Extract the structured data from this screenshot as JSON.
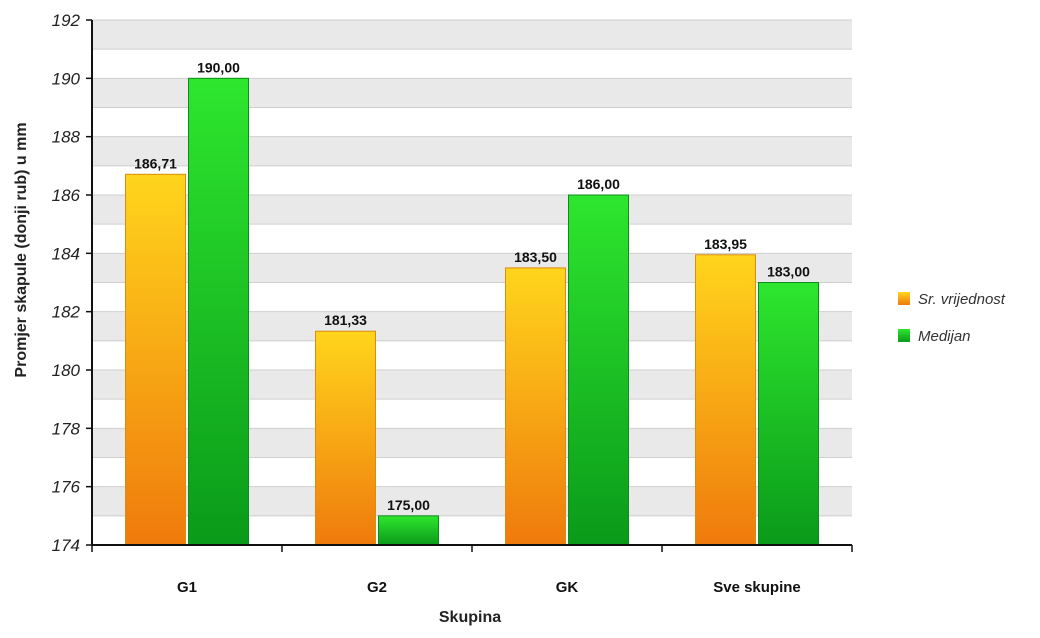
{
  "chart_data": {
    "type": "bar",
    "title": "",
    "xlabel": "Skupina",
    "ylabel": "Promjer skapule (donji rub) u mm",
    "ylim": [
      174,
      192
    ],
    "yticks": [
      174,
      176,
      178,
      180,
      182,
      184,
      186,
      188,
      190,
      192
    ],
    "categories": [
      "G1",
      "G2",
      "GK",
      "Sve skupine"
    ],
    "series": [
      {
        "name": "Sr. vrijednost",
        "values": [
          186.71,
          181.33,
          183.5,
          183.95
        ],
        "labels": [
          "186,71",
          "181,33",
          "183,50",
          "183,95"
        ],
        "color_top": "#ffd51c",
        "color_bottom": "#ef7a0c"
      },
      {
        "name": "Medijan",
        "values": [
          190.0,
          175.0,
          186.0,
          183.0
        ],
        "labels": [
          "190,00",
          "175,00",
          "186,00",
          "183,00"
        ],
        "color_top": "#2ee62e",
        "color_bottom": "#0a9a1a"
      }
    ],
    "legend_position": "right",
    "grid": true,
    "grid_band_color": "#e9e9e9"
  }
}
